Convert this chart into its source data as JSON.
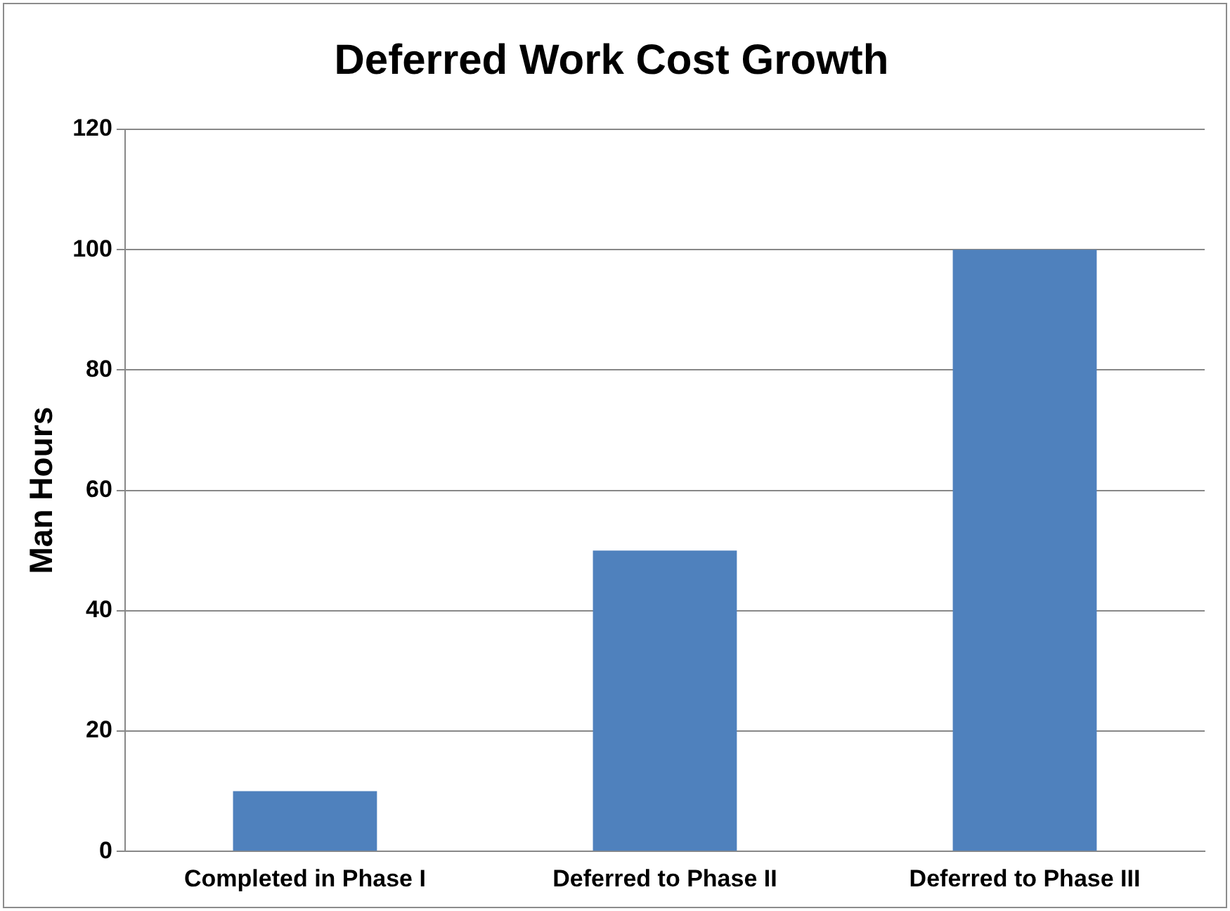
{
  "chart_data": {
    "type": "bar",
    "title": "Deferred Work Cost Growth",
    "ylabel": "Man Hours",
    "categories": [
      "Completed in Phase I",
      "Deferred to Phase II",
      "Deferred to Phase III"
    ],
    "values": [
      10,
      50,
      100
    ],
    "color": "#4f81bd",
    "ylim": [
      0,
      120
    ],
    "yticks": [
      0,
      20,
      40,
      60,
      80,
      100,
      120
    ],
    "grid": "y",
    "legend": false
  }
}
